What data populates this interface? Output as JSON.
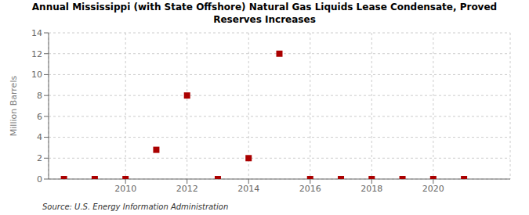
{
  "chart_data": {
    "type": "scatter",
    "title": "Annual Mississippi (with State Offshore) Natural Gas Liquids Lease Condensate, Proved\nReserves Increases",
    "y_label": "Million Barrels",
    "annotations": [
      "Source: U.S. Energy Information Administration"
    ],
    "x": [
      2008,
      2009,
      2010,
      2011,
      2012,
      2013,
      2014,
      2015,
      2016,
      2017,
      2018,
      2019,
      2020,
      2021
    ],
    "values": [
      0.0,
      0.0,
      0.0,
      2.8,
      8.0,
      0.0,
      2.0,
      12.0,
      0.0,
      0.0,
      0.0,
      0.0,
      0.0,
      0.0
    ],
    "color": "#aa0000",
    "marker": "square",
    "xlim": [
      2007.5,
      2022.5
    ],
    "ylim": [
      0,
      14
    ],
    "xticks": [
      2010,
      2012,
      2014,
      2016,
      2018,
      2020
    ],
    "yticks": [
      0,
      2,
      4,
      6,
      8,
      10,
      12,
      14
    ],
    "grid": true
  }
}
